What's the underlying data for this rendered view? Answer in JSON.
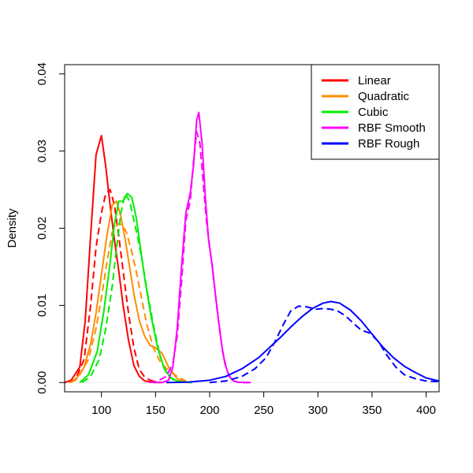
{
  "chart_data": {
    "type": "line",
    "title": "",
    "xlabel": "",
    "ylabel": "Density",
    "xlim": [
      66,
      412
    ],
    "ylim": [
      -0.0012,
      0.0412
    ],
    "x_ticks": [
      100,
      150,
      200,
      250,
      300,
      350,
      400
    ],
    "x_tick_labels": [
      "100",
      "150",
      "200",
      "250",
      "300",
      "350",
      "400"
    ],
    "y_ticks": [
      0.0,
      0.01,
      0.02,
      0.03,
      0.04
    ],
    "y_tick_labels": [
      "0.00",
      "0.01",
      "0.02",
      "0.03",
      "0.04"
    ],
    "grid": false,
    "legend_position": "top-right",
    "legend": [
      {
        "label": "Linear",
        "color": "#ff0000"
      },
      {
        "label": "Quadratic",
        "color": "#ff8c00"
      },
      {
        "label": "Cubic",
        "color": "#00ee00"
      },
      {
        "label": "RBF Smooth",
        "color": "#ff00ff"
      },
      {
        "label": "RBF Rough",
        "color": "#0000ff"
      }
    ],
    "series": [
      {
        "name": "Linear",
        "color": "#ff0000",
        "dash": "solid",
        "x": [
          66,
          72,
          80,
          85,
          90,
          95,
          100,
          104,
          108,
          112,
          116,
          120,
          125,
          130,
          135,
          140,
          146,
          150
        ],
        "y": [
          0.0,
          0.0003,
          0.002,
          0.008,
          0.019,
          0.0295,
          0.032,
          0.028,
          0.023,
          0.0185,
          0.0145,
          0.01,
          0.0055,
          0.0022,
          0.0008,
          0.0002,
          5e-05,
          0.0
        ]
      },
      {
        "name": "Linear",
        "color": "#ff0000",
        "dash": "dashed",
        "x": [
          70,
          76,
          84,
          90,
          95,
          100,
          104,
          108,
          112,
          116,
          120,
          125,
          130,
          135,
          140,
          145,
          150,
          156
        ],
        "y": [
          0.0,
          0.0004,
          0.003,
          0.01,
          0.0175,
          0.022,
          0.0245,
          0.025,
          0.023,
          0.019,
          0.0145,
          0.009,
          0.0045,
          0.0017,
          0.0007,
          0.0003,
          0.0001,
          0.0
        ]
      },
      {
        "name": "Quadratic",
        "color": "#ff8c00",
        "dash": "solid",
        "x": [
          70,
          76,
          84,
          90,
          95,
          100,
          105,
          110,
          114,
          118,
          122,
          126,
          130,
          135,
          140,
          145,
          150,
          156,
          162,
          170,
          178
        ],
        "y": [
          0.0,
          0.0003,
          0.002,
          0.005,
          0.009,
          0.014,
          0.019,
          0.023,
          0.0235,
          0.0215,
          0.0185,
          0.015,
          0.0115,
          0.008,
          0.006,
          0.0048,
          0.0045,
          0.0038,
          0.002,
          0.0005,
          0.0
        ]
      },
      {
        "name": "Quadratic",
        "color": "#ff8c00",
        "dash": "dashed",
        "x": [
          72,
          80,
          88,
          95,
          100,
          105,
          110,
          115,
          119,
          123,
          127,
          132,
          137,
          142,
          148,
          154,
          160,
          166,
          172,
          178,
          184
        ],
        "y": [
          0.0,
          0.001,
          0.003,
          0.007,
          0.011,
          0.0155,
          0.0195,
          0.0205,
          0.0205,
          0.0195,
          0.0175,
          0.0145,
          0.011,
          0.0075,
          0.0045,
          0.0028,
          0.0018,
          0.0012,
          0.0006,
          0.0002,
          0.0
        ]
      },
      {
        "name": "Cubic",
        "color": "#00ee00",
        "dash": "solid",
        "x": [
          80,
          88,
          96,
          102,
          108,
          112,
          116,
          120,
          124,
          128,
          132,
          136,
          140,
          146,
          152,
          158,
          164,
          170,
          176,
          182
        ],
        "y": [
          0.0,
          0.001,
          0.004,
          0.009,
          0.0155,
          0.0205,
          0.0235,
          0.0235,
          0.0245,
          0.024,
          0.0215,
          0.0175,
          0.0135,
          0.0085,
          0.0045,
          0.0018,
          0.0006,
          0.0002,
          5e-05,
          0.0
        ]
      },
      {
        "name": "Cubic",
        "color": "#00ee00",
        "dash": "dashed",
        "x": [
          82,
          90,
          98,
          104,
          110,
          114,
          118,
          122,
          126,
          130,
          134,
          138,
          142,
          148,
          154,
          160,
          166,
          172,
          178,
          184
        ],
        "y": [
          0.0,
          0.0008,
          0.003,
          0.007,
          0.0125,
          0.0175,
          0.022,
          0.0245,
          0.0235,
          0.021,
          0.0185,
          0.0155,
          0.012,
          0.0075,
          0.0035,
          0.0012,
          0.0004,
          0.0001,
          2e-05,
          0.0
        ]
      },
      {
        "name": "RBF Smooth",
        "color": "#ff00ff",
        "dash": "solid",
        "x": [
          150,
          156,
          162,
          166,
          170,
          174,
          178,
          182,
          185,
          188,
          190,
          193,
          196,
          199,
          202,
          205,
          208,
          211,
          214,
          218,
          222,
          226,
          232,
          238
        ],
        "y": [
          0.0,
          0.0,
          0.0003,
          0.002,
          0.007,
          0.015,
          0.022,
          0.0245,
          0.028,
          0.034,
          0.035,
          0.031,
          0.024,
          0.0185,
          0.0155,
          0.0118,
          0.0083,
          0.005,
          0.0025,
          0.0008,
          0.0002,
          5e-05,
          0.0,
          0.0
        ]
      },
      {
        "name": "RBF Smooth",
        "color": "#ff00ff",
        "dash": "dashed",
        "x": [
          144,
          152,
          160,
          166,
          170,
          174,
          178,
          182,
          185,
          188,
          191,
          194,
          197,
          200,
          203,
          206,
          209,
          212,
          216,
          220,
          224,
          230,
          236
        ],
        "y": [
          0.0,
          0.0002,
          0.0008,
          0.0025,
          0.006,
          0.013,
          0.021,
          0.0235,
          0.0285,
          0.0325,
          0.031,
          0.026,
          0.021,
          0.0175,
          0.0145,
          0.0105,
          0.007,
          0.004,
          0.0015,
          0.0004,
          0.0001,
          0.0,
          0.0
        ]
      },
      {
        "name": "RBF Rough",
        "color": "#0000ff",
        "dash": "solid",
        "x": [
          160,
          180,
          200,
          215,
          230,
          245,
          255,
          265,
          275,
          285,
          295,
          305,
          312,
          320,
          330,
          340,
          350,
          360,
          370,
          380,
          390,
          400,
          412
        ],
        "y": [
          0.0,
          5e-05,
          0.0003,
          0.0008,
          0.0018,
          0.0032,
          0.0045,
          0.0058,
          0.0072,
          0.0085,
          0.0096,
          0.0103,
          0.0105,
          0.0103,
          0.0094,
          0.008,
          0.0063,
          0.0046,
          0.0032,
          0.0021,
          0.0013,
          0.0006,
          0.0002
        ]
      },
      {
        "name": "RBF Rough",
        "color": "#0000ff",
        "dash": "dashed",
        "x": [
          200,
          215,
          230,
          242,
          252,
          260,
          268,
          275,
          282,
          290,
          298,
          305,
          312,
          318,
          325,
          332,
          340,
          348,
          356,
          364,
          372,
          380,
          390,
          400,
          412
        ],
        "y": [
          0.0,
          0.0002,
          0.0008,
          0.0018,
          0.0032,
          0.0052,
          0.0075,
          0.0093,
          0.0099,
          0.0098,
          0.0095,
          0.0096,
          0.0095,
          0.0093,
          0.0087,
          0.0078,
          0.0068,
          0.0064,
          0.0053,
          0.0035,
          0.002,
          0.001,
          0.0005,
          0.0002,
          0.0001
        ]
      }
    ]
  }
}
